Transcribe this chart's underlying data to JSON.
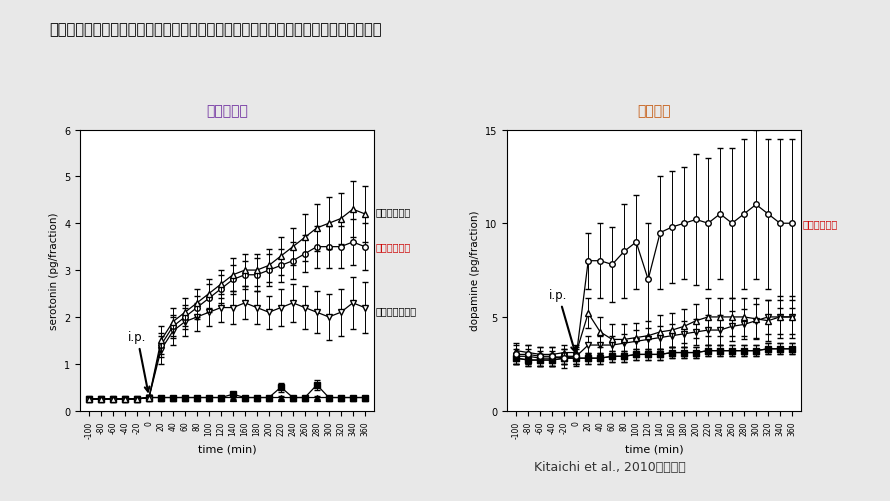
{
  "title": "セルトラリンによる側坐核における細胞外セロトニン・ドパミン量の変化（ラット）",
  "title_fontsize": 10.5,
  "citation": "Kitaichi et al., 2010より引用",
  "background_color": "#e8e8e8",
  "plot_bg": "#ffffff",
  "left_title": "セロトニン",
  "left_title_color": "#7030a0",
  "right_title": "ドパミン",
  "right_title_color": "#c55a11",
  "time_points": [
    -100,
    -80,
    -60,
    -40,
    -20,
    0,
    20,
    40,
    60,
    80,
    100,
    120,
    140,
    160,
    180,
    200,
    220,
    240,
    260,
    280,
    300,
    320,
    340,
    360
  ],
  "serotonin_paroxetine": [
    0.25,
    0.25,
    0.25,
    0.25,
    0.25,
    0.28,
    1.5,
    1.9,
    2.1,
    2.3,
    2.5,
    2.7,
    2.9,
    3.0,
    3.0,
    3.1,
    3.3,
    3.5,
    3.7,
    3.9,
    4.0,
    4.1,
    4.3,
    4.2
  ],
  "serotonin_paroxetine_err": [
    0.05,
    0.05,
    0.05,
    0.05,
    0.05,
    0.05,
    0.3,
    0.3,
    0.3,
    0.3,
    0.3,
    0.3,
    0.35,
    0.35,
    0.35,
    0.35,
    0.4,
    0.4,
    0.5,
    0.5,
    0.55,
    0.55,
    0.6,
    0.6
  ],
  "serotonin_sertraline": [
    0.25,
    0.25,
    0.25,
    0.25,
    0.25,
    0.28,
    1.4,
    1.8,
    2.0,
    2.2,
    2.4,
    2.6,
    2.8,
    2.9,
    2.9,
    3.0,
    3.1,
    3.2,
    3.35,
    3.5,
    3.5,
    3.5,
    3.6,
    3.5
  ],
  "serotonin_sertraline_err": [
    0.05,
    0.05,
    0.05,
    0.05,
    0.05,
    0.05,
    0.25,
    0.25,
    0.25,
    0.25,
    0.3,
    0.3,
    0.3,
    0.3,
    0.35,
    0.35,
    0.35,
    0.4,
    0.4,
    0.45,
    0.45,
    0.45,
    0.5,
    0.5
  ],
  "serotonin_fluvoxamine": [
    0.25,
    0.25,
    0.25,
    0.25,
    0.25,
    0.28,
    1.3,
    1.7,
    1.9,
    2.0,
    2.1,
    2.2,
    2.2,
    2.3,
    2.2,
    2.1,
    2.2,
    2.3,
    2.2,
    2.1,
    2.0,
    2.1,
    2.3,
    2.2
  ],
  "serotonin_fluvoxamine_err": [
    0.05,
    0.05,
    0.05,
    0.05,
    0.05,
    0.05,
    0.3,
    0.3,
    0.3,
    0.3,
    0.3,
    0.3,
    0.35,
    0.35,
    0.35,
    0.35,
    0.4,
    0.4,
    0.45,
    0.45,
    0.5,
    0.5,
    0.55,
    0.55
  ],
  "serotonin_vehicle_filled_tri": [
    0.25,
    0.25,
    0.25,
    0.25,
    0.25,
    0.28,
    0.28,
    0.28,
    0.28,
    0.28,
    0.28,
    0.28,
    0.28,
    0.28,
    0.28,
    0.28,
    0.28,
    0.28,
    0.28,
    0.28,
    0.28,
    0.28,
    0.28,
    0.28
  ],
  "serotonin_vehicle_filled_tri_err": [
    0.03,
    0.03,
    0.03,
    0.03,
    0.03,
    0.03,
    0.03,
    0.03,
    0.03,
    0.03,
    0.03,
    0.03,
    0.03,
    0.03,
    0.03,
    0.03,
    0.03,
    0.03,
    0.03,
    0.03,
    0.03,
    0.03,
    0.03,
    0.03
  ],
  "serotonin_vehicle": [
    0.25,
    0.25,
    0.25,
    0.25,
    0.25,
    0.28,
    0.28,
    0.28,
    0.28,
    0.28,
    0.28,
    0.28,
    0.35,
    0.28,
    0.28,
    0.28,
    0.5,
    0.28,
    0.28,
    0.55,
    0.28,
    0.28,
    0.28,
    0.28
  ],
  "serotonin_vehicle_err": [
    0.03,
    0.03,
    0.03,
    0.03,
    0.03,
    0.03,
    0.03,
    0.03,
    0.03,
    0.03,
    0.03,
    0.03,
    0.05,
    0.03,
    0.03,
    0.03,
    0.1,
    0.03,
    0.03,
    0.1,
    0.03,
    0.03,
    0.03,
    0.03
  ],
  "dopamine_sertraline": [
    3.0,
    3.0,
    2.9,
    2.9,
    2.8,
    2.9,
    8.0,
    8.0,
    7.8,
    8.5,
    9.0,
    7.0,
    9.5,
    9.8,
    10.0,
    10.2,
    10.0,
    10.5,
    10.0,
    10.5,
    11.0,
    10.5,
    10.0,
    10.0
  ],
  "dopamine_sertraline_err": [
    0.5,
    0.5,
    0.5,
    0.5,
    0.5,
    0.5,
    1.5,
    2.0,
    2.0,
    2.5,
    2.5,
    3.0,
    3.0,
    3.0,
    3.0,
    3.5,
    3.5,
    3.5,
    4.0,
    4.0,
    4.0,
    4.0,
    4.5,
    4.5
  ],
  "dopamine_paroxetine": [
    3.2,
    3.1,
    3.0,
    3.0,
    3.1,
    3.1,
    5.2,
    4.2,
    3.8,
    3.8,
    3.9,
    4.0,
    4.2,
    4.3,
    4.5,
    4.8,
    5.0,
    5.0,
    5.0,
    5.0,
    4.9,
    4.8,
    5.0,
    5.0
  ],
  "dopamine_paroxetine_err": [
    0.4,
    0.4,
    0.4,
    0.4,
    0.4,
    0.4,
    0.8,
    0.8,
    0.8,
    0.8,
    0.8,
    0.8,
    0.9,
    0.9,
    0.9,
    0.9,
    1.0,
    1.0,
    1.0,
    1.0,
    1.1,
    1.1,
    1.1,
    1.1
  ],
  "dopamine_fluvoxamine": [
    2.9,
    2.9,
    2.8,
    2.8,
    2.9,
    2.9,
    3.5,
    3.5,
    3.5,
    3.6,
    3.7,
    3.8,
    3.9,
    4.0,
    4.1,
    4.2,
    4.3,
    4.3,
    4.5,
    4.6,
    4.8,
    5.0,
    5.0,
    5.0
  ],
  "dopamine_fluvoxamine_err": [
    0.4,
    0.4,
    0.4,
    0.4,
    0.4,
    0.4,
    0.5,
    0.5,
    0.5,
    0.5,
    0.6,
    0.6,
    0.6,
    0.6,
    0.7,
    0.7,
    0.8,
    0.8,
    0.8,
    0.8,
    0.9,
    0.9,
    0.9,
    0.9
  ],
  "dopamine_vehicle": [
    2.8,
    2.7,
    2.7,
    2.7,
    2.8,
    2.8,
    2.8,
    2.8,
    2.9,
    2.9,
    3.0,
    3.0,
    3.0,
    3.1,
    3.1,
    3.1,
    3.2,
    3.2,
    3.2,
    3.2,
    3.2,
    3.3,
    3.3,
    3.3
  ],
  "dopamine_vehicle_err": [
    0.3,
    0.3,
    0.3,
    0.3,
    0.3,
    0.3,
    0.3,
    0.3,
    0.3,
    0.3,
    0.3,
    0.3,
    0.3,
    0.3,
    0.3,
    0.3,
    0.3,
    0.3,
    0.3,
    0.3,
    0.3,
    0.3,
    0.3,
    0.3
  ],
  "dopamine_vehicle_tri": [
    2.8,
    2.7,
    2.7,
    2.7,
    2.8,
    2.8,
    2.8,
    2.8,
    2.9,
    2.9,
    3.0,
    3.0,
    3.0,
    3.1,
    3.1,
    3.1,
    3.2,
    3.2,
    3.2,
    3.2,
    3.2,
    3.3,
    3.3,
    3.3
  ],
  "dopamine_vehicle_tri_err": [
    0.3,
    0.3,
    0.3,
    0.3,
    0.3,
    0.3,
    0.3,
    0.3,
    0.3,
    0.3,
    0.3,
    0.3,
    0.3,
    0.3,
    0.3,
    0.3,
    0.3,
    0.3,
    0.3,
    0.3,
    0.3,
    0.3,
    0.3,
    0.3
  ],
  "serotonin_ylabel": "serotonin (pg/fraction)",
  "dopamine_ylabel": "dopamine (pg/fraction)",
  "xlabel": "time (min)",
  "serotonin_ylim": [
    0,
    6
  ],
  "dopamine_ylim": [
    0,
    15
  ],
  "label_paroxetine": "パロキセチン",
  "label_sertraline": "セルトラリン",
  "label_fluvoxamine": "フルボキサミン",
  "label_sertraline_color": "#cc0000",
  "label_paroxetine_color": "#000000",
  "label_fluvoxamine_color": "#000000",
  "label_sertraline_right_color": "#cc0000"
}
